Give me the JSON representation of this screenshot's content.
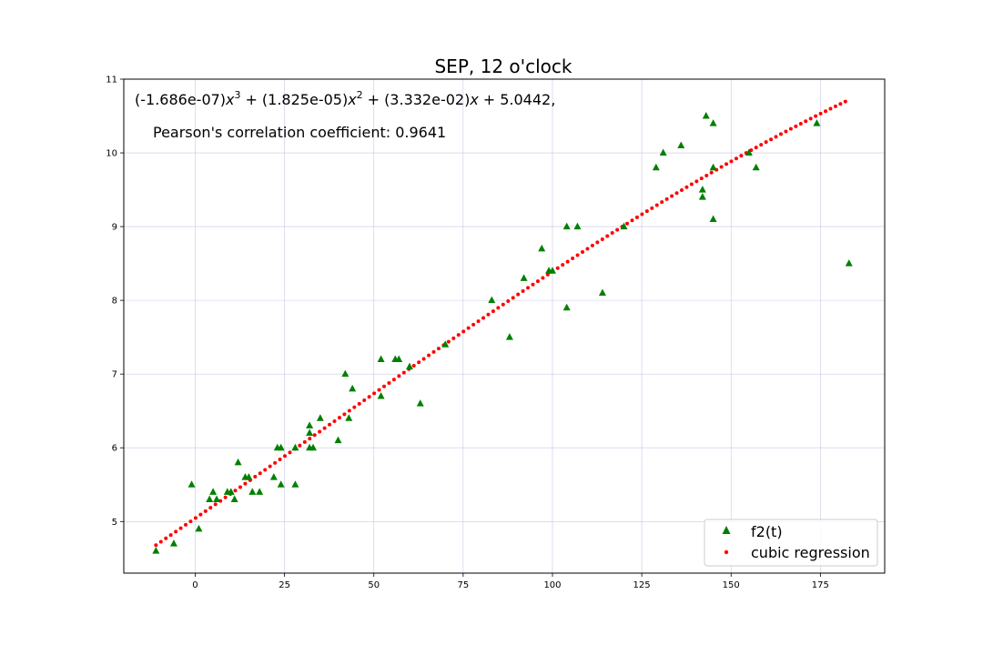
{
  "chart_data": {
    "type": "scatter",
    "title": "SEP, 12 o'clock",
    "equation": {
      "c3": "(-1.686e-07)",
      "c2": "(1.825e-05)",
      "c1": "(3.332e-02)",
      "c0": "5.0442,",
      "var": "x",
      "p3": "3",
      "p2": "2",
      "plus": "+"
    },
    "pearson_label": "Pearson's correlation coefficient: 0.9641",
    "xlabel": "",
    "ylabel": "",
    "xlim": [
      -20,
      193
    ],
    "ylim": [
      4.3,
      11
    ],
    "x_ticks": [
      0,
      25,
      50,
      75,
      100,
      125,
      150,
      175
    ],
    "y_ticks": [
      5,
      6,
      7,
      8,
      9,
      10,
      11
    ],
    "grid": true,
    "legend_position": "bottom-right",
    "series": [
      {
        "name": "f2(t)",
        "marker": "triangle",
        "color": "#008000",
        "points": [
          [
            -11,
            4.6
          ],
          [
            -6,
            4.7
          ],
          [
            -1,
            5.5
          ],
          [
            1,
            4.9
          ],
          [
            4,
            5.3
          ],
          [
            5,
            5.4
          ],
          [
            6,
            5.3
          ],
          [
            9,
            5.4
          ],
          [
            10,
            5.4
          ],
          [
            11,
            5.3
          ],
          [
            12,
            5.8
          ],
          [
            14,
            5.6
          ],
          [
            15,
            5.6
          ],
          [
            16,
            5.4
          ],
          [
            18,
            5.4
          ],
          [
            22,
            5.6
          ],
          [
            23,
            6.0
          ],
          [
            24,
            6.0
          ],
          [
            24,
            5.5
          ],
          [
            28,
            6.0
          ],
          [
            28,
            5.5
          ],
          [
            32,
            6.3
          ],
          [
            32,
            6.2
          ],
          [
            32,
            6.0
          ],
          [
            33,
            6.0
          ],
          [
            35,
            6.4
          ],
          [
            40,
            6.1
          ],
          [
            42,
            7.0
          ],
          [
            43,
            6.4
          ],
          [
            44,
            6.8
          ],
          [
            52,
            7.2
          ],
          [
            52,
            6.7
          ],
          [
            56,
            7.2
          ],
          [
            57,
            7.2
          ],
          [
            60,
            7.1
          ],
          [
            63,
            6.6
          ],
          [
            70,
            7.4
          ],
          [
            83,
            8.0
          ],
          [
            88,
            7.5
          ],
          [
            92,
            8.3
          ],
          [
            97,
            8.7
          ],
          [
            99,
            8.4
          ],
          [
            100,
            8.4
          ],
          [
            104,
            9.0
          ],
          [
            104,
            7.9
          ],
          [
            107,
            9.0
          ],
          [
            114,
            8.1
          ],
          [
            120,
            9.0
          ],
          [
            129,
            9.8
          ],
          [
            131,
            10.0
          ],
          [
            136,
            10.1
          ],
          [
            142,
            9.5
          ],
          [
            142,
            9.4
          ],
          [
            143,
            10.5
          ],
          [
            145,
            10.4
          ],
          [
            145,
            9.8
          ],
          [
            145,
            9.1
          ],
          [
            155,
            10.0
          ],
          [
            157,
            9.8
          ],
          [
            174,
            10.4
          ],
          [
            183,
            8.5
          ]
        ]
      },
      {
        "name": "cubic regression",
        "marker": "dot",
        "color": "#ff0000",
        "coefficients": [
          -1.686e-07,
          1.825e-05,
          0.03332,
          5.0442
        ],
        "x_range": [
          -11,
          182
        ],
        "n_points": 140
      }
    ]
  }
}
